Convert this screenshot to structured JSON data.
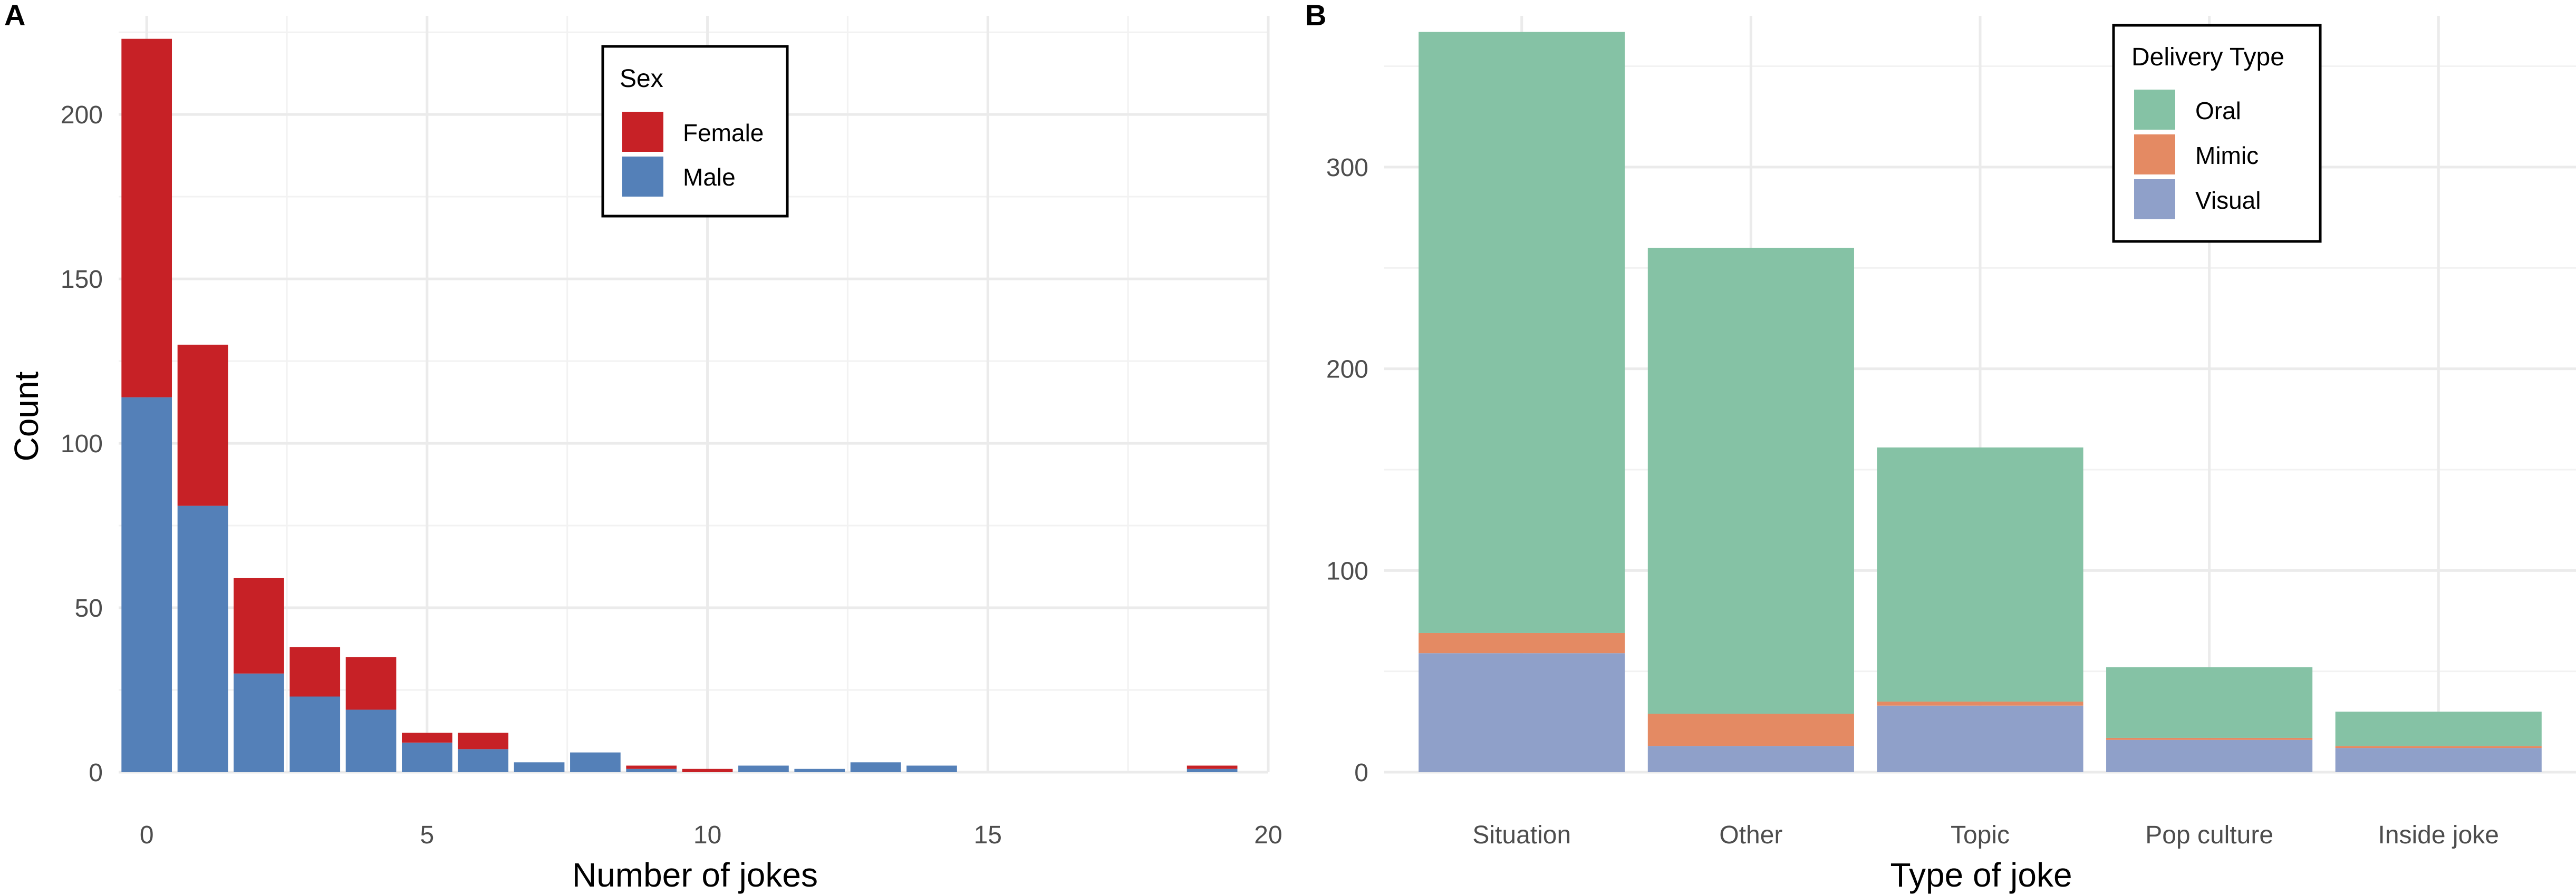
{
  "panels": [
    {
      "tag": "A"
    },
    {
      "tag": "B"
    }
  ],
  "chart_data": [
    {
      "type": "bar",
      "stacked": true,
      "panel": "A",
      "title": "",
      "xlabel": "Number of jokes",
      "ylabel": "Count",
      "x": [
        0,
        1,
        2,
        3,
        4,
        5,
        6,
        7,
        8,
        9,
        10,
        11,
        12,
        13,
        14,
        15,
        16,
        17,
        18,
        19
      ],
      "xlim": [
        -0.5,
        20
      ],
      "ylim": [
        0,
        230
      ],
      "xticks": [
        0,
        5,
        10,
        15,
        20
      ],
      "yticks": [
        0,
        50,
        100,
        150,
        200
      ],
      "grid": true,
      "legend": {
        "title": "Sex",
        "position": "top-center"
      },
      "series": [
        {
          "name": "Male",
          "color": "#5480B8",
          "values": [
            114,
            81,
            30,
            23,
            19,
            9,
            7,
            3,
            6,
            1,
            0,
            2,
            1,
            3,
            2,
            0,
            0,
            0,
            0,
            1
          ]
        },
        {
          "name": "Female",
          "color": "#C72126",
          "values": [
            109,
            49,
            29,
            15,
            16,
            3,
            5,
            0,
            0,
            1,
            1,
            0,
            0,
            0,
            0,
            0,
            0,
            0,
            0,
            1
          ]
        }
      ],
      "legend_order": [
        "Female",
        "Male"
      ]
    },
    {
      "type": "bar",
      "stacked": true,
      "panel": "B",
      "title": "",
      "xlabel": "Type of joke",
      "ylabel": "",
      "categories": [
        "Situation",
        "Other",
        "Topic",
        "Pop culture",
        "Inside joke"
      ],
      "ylim": [
        0,
        375
      ],
      "yticks": [
        0,
        100,
        200,
        300
      ],
      "grid": true,
      "legend": {
        "title": "Delivery Type",
        "position": "top-center"
      },
      "series": [
        {
          "name": "Visual",
          "color": "#8FA0C9",
          "values": [
            59,
            13,
            33,
            16,
            12
          ]
        },
        {
          "name": "Mimic",
          "color": "#E48A63",
          "values": [
            10,
            16,
            2,
            1,
            1
          ]
        },
        {
          "name": "Oral",
          "color": "#85C2A5",
          "values": [
            298,
            231,
            126,
            35,
            17
          ]
        }
      ],
      "legend_order": [
        "Oral",
        "Mimic",
        "Visual"
      ]
    }
  ]
}
